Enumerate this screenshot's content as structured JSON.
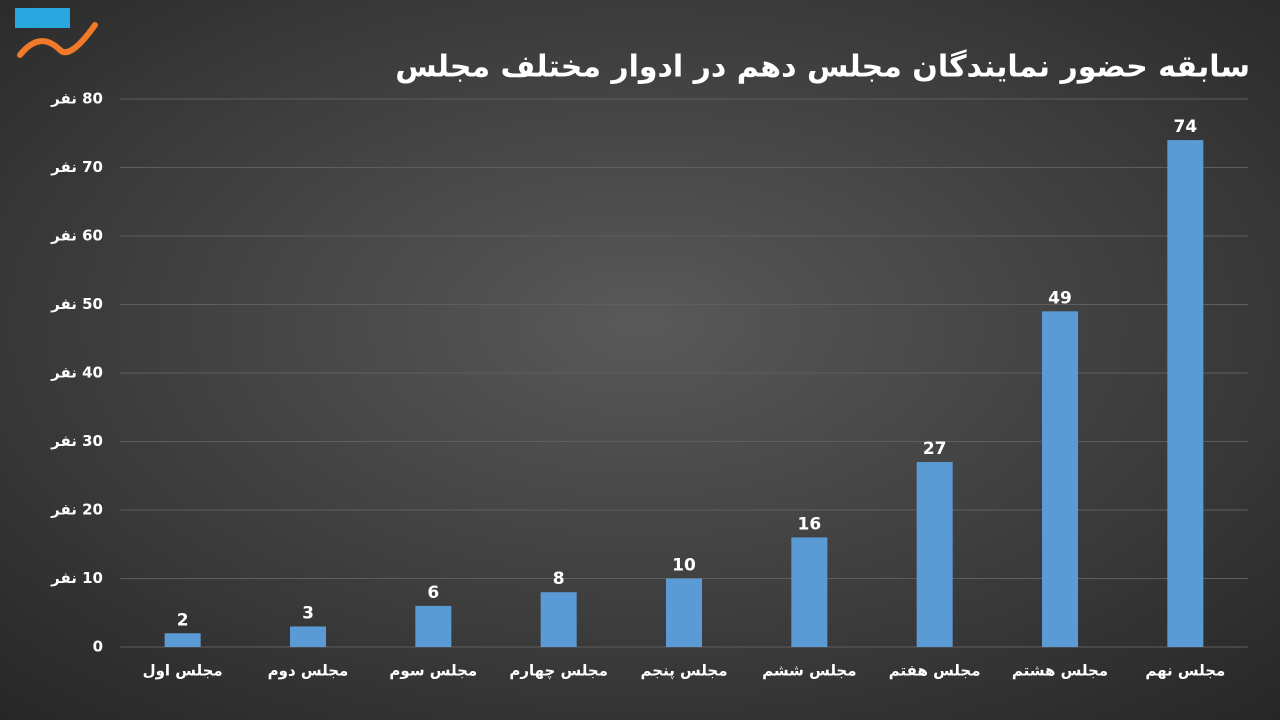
{
  "chart_data": {
    "type": "bar",
    "title": "سابقه حضور نمایندگان مجلس دهم در ادوار مختلف مجلس",
    "categories": [
      "مجلس اول",
      "مجلس دوم",
      "مجلس سوم",
      "مجلس چهارم",
      "مجلس پنجم",
      "مجلس ششم",
      "مجلس هفتم",
      "مجلس هشتم",
      "مجلس نهم"
    ],
    "values": [
      2,
      3,
      6,
      8,
      10,
      16,
      27,
      49,
      74
    ],
    "color": "#5b9bd5",
    "ylim": [
      0,
      80
    ],
    "yticks": [
      0,
      {
        "value": 10,
        "label": "10 نفر"
      },
      {
        "value": 20,
        "label": "20 نفر"
      },
      {
        "value": 30,
        "label": "30 نفر"
      },
      {
        "value": 40,
        "label": "40 نفر"
      },
      {
        "value": 50,
        "label": "50 نفر"
      },
      {
        "value": 60,
        "label": "60 نفر"
      },
      {
        "value": 70,
        "label": "70 نفر"
      },
      {
        "value": 80,
        "label": "80 نفر"
      }
    ],
    "grid": true
  }
}
